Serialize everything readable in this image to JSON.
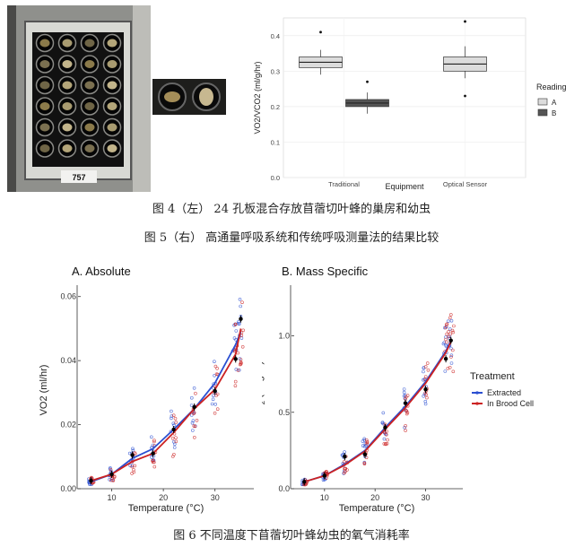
{
  "fig4": {
    "plate_label": "757"
  },
  "captions": {
    "c1": "图 4（左） 24 孔板混合存放苜蓿切叶蜂的巢房和幼虫",
    "c2": "图 5（右） 高通量呼吸系统和传统呼吸测量法的结果比较",
    "c3": "图 6 不同温度下苜蓿切叶蜂幼虫的氧气消耗率"
  },
  "chart_data": [
    {
      "type": "box",
      "xlabel": "Equipment",
      "ylabel": "VO2/VCO2 (ml/g/hr)",
      "categories": [
        "Traditional",
        "Optical Sensor"
      ],
      "ylim": [
        0,
        0.45
      ],
      "yticks": [
        "0.0",
        "0.1",
        "0.2",
        "0.3",
        "0.4"
      ],
      "legend": {
        "title": "Reading",
        "entries": [
          "A",
          "B"
        ],
        "colors": [
          "#dcdcdc",
          "#555555"
        ],
        "position": "right"
      },
      "boxes": [
        {
          "category": "Traditional",
          "series": "A",
          "min": 0.29,
          "q1": 0.31,
          "median": 0.325,
          "q3": 0.34,
          "max": 0.36,
          "outliers": [
            0.41
          ]
        },
        {
          "category": "Traditional",
          "series": "B",
          "min": 0.18,
          "q1": 0.2,
          "median": 0.21,
          "q3": 0.22,
          "max": 0.24,
          "outliers": [
            0.27
          ]
        },
        {
          "category": "Optical Sensor",
          "series": "A",
          "min": 0.28,
          "q1": 0.3,
          "median": 0.32,
          "q3": 0.34,
          "max": 0.37,
          "outliers": [
            0.44,
            0.23
          ]
        }
      ]
    },
    {
      "type": "scatter",
      "title": "A. Absolute",
      "xlabel": "Temperature (°C)",
      "ylabel": "VO2 (ml/hr)",
      "xlim": [
        4,
        37
      ],
      "ylim": [
        0,
        0.063
      ],
      "xticks": [
        10,
        20,
        30
      ],
      "yticks": [
        "0.00",
        "0.02",
        "0.04",
        "0.06"
      ],
      "x": [
        6,
        10,
        14,
        18,
        22,
        26,
        30,
        34,
        35
      ],
      "means": [
        0.0025,
        0.0045,
        0.0105,
        0.011,
        0.0185,
        0.0255,
        0.0305,
        0.0405,
        0.053
      ],
      "series": [
        {
          "name": "Extracted",
          "color": "#2b4fd1",
          "fit": [
            0.0022,
            0.0045,
            0.0095,
            0.0125,
            0.0185,
            0.025,
            0.033,
            0.045,
            0.049
          ],
          "spread": [
            0.001,
            0.002,
            0.004,
            0.004,
            0.006,
            0.007,
            0.007,
            0.009,
            0.012
          ]
        },
        {
          "name": "In Brood Cell",
          "color": "#cc2222",
          "fit": [
            0.0025,
            0.0045,
            0.0085,
            0.011,
            0.0175,
            0.025,
            0.031,
            0.042,
            0.05
          ],
          "spread": [
            0.001,
            0.002,
            0.004,
            0.005,
            0.008,
            0.009,
            0.008,
            0.01,
            0.012
          ]
        }
      ]
    },
    {
      "type": "scatter",
      "title": "B. Mass Specific",
      "xlabel": "Temperature (°C)",
      "ylabel": "VO2 (ml/g/hr)",
      "xlim": [
        4,
        37
      ],
      "ylim": [
        0,
        1.32
      ],
      "xticks": [
        10,
        20,
        30
      ],
      "yticks": [
        "0.0",
        "0.5",
        "1.0"
      ],
      "x": [
        6,
        10,
        14,
        18,
        22,
        26,
        30,
        34,
        35
      ],
      "means": [
        0.045,
        0.085,
        0.21,
        0.225,
        0.4,
        0.56,
        0.65,
        0.85,
        0.97
      ],
      "legend": {
        "title": "Treatment",
        "position": "right"
      },
      "series": [
        {
          "name": "Extracted",
          "color": "#2b4fd1",
          "fit": [
            0.045,
            0.085,
            0.16,
            0.25,
            0.4,
            0.54,
            0.7,
            0.9,
            0.97
          ],
          "spread": [
            0.02,
            0.03,
            0.08,
            0.1,
            0.12,
            0.14,
            0.15,
            0.18,
            0.22
          ]
        },
        {
          "name": "In Brood Cell",
          "color": "#cc2222",
          "fit": [
            0.045,
            0.085,
            0.155,
            0.245,
            0.39,
            0.53,
            0.69,
            0.89,
            0.96
          ],
          "spread": [
            0.02,
            0.03,
            0.08,
            0.11,
            0.13,
            0.15,
            0.16,
            0.2,
            0.2
          ]
        }
      ]
    }
  ]
}
